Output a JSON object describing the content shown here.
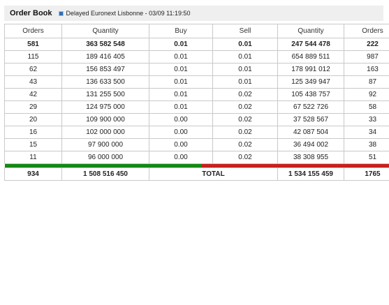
{
  "header": {
    "title": "Order Book",
    "status": "Delayed Euronext Lisbonne - 03/09 11:19:50"
  },
  "columns": [
    "Orders",
    "Quantity",
    "Buy",
    "Sell",
    "Quantity",
    "Orders"
  ],
  "rows": [
    {
      "bid_orders": "581",
      "bid_qty": "363 582 548",
      "buy": "0.01",
      "sell": "0.01",
      "ask_qty": "247 544 478",
      "ask_orders": "222"
    },
    {
      "bid_orders": "115",
      "bid_qty": "189 416 405",
      "buy": "0.01",
      "sell": "0.01",
      "ask_qty": "654 889 511",
      "ask_orders": "987"
    },
    {
      "bid_orders": "62",
      "bid_qty": "156 853 497",
      "buy": "0.01",
      "sell": "0.01",
      "ask_qty": "178 991 012",
      "ask_orders": "163"
    },
    {
      "bid_orders": "43",
      "bid_qty": "136 633 500",
      "buy": "0.01",
      "sell": "0.01",
      "ask_qty": "125 349 947",
      "ask_orders": "87"
    },
    {
      "bid_orders": "42",
      "bid_qty": "131 255 500",
      "buy": "0.01",
      "sell": "0.02",
      "ask_qty": "105 438 757",
      "ask_orders": "92"
    },
    {
      "bid_orders": "29",
      "bid_qty": "124 975 000",
      "buy": "0.01",
      "sell": "0.02",
      "ask_qty": "67 522 726",
      "ask_orders": "58"
    },
    {
      "bid_orders": "20",
      "bid_qty": "109 900 000",
      "buy": "0.00",
      "sell": "0.02",
      "ask_qty": "37 528 567",
      "ask_orders": "33"
    },
    {
      "bid_orders": "16",
      "bid_qty": "102 000 000",
      "buy": "0.00",
      "sell": "0.02",
      "ask_qty": "42 087 504",
      "ask_orders": "34"
    },
    {
      "bid_orders": "15",
      "bid_qty": "97 900 000",
      "buy": "0.00",
      "sell": "0.02",
      "ask_qty": "36 494 002",
      "ask_orders": "38"
    },
    {
      "bid_orders": "11",
      "bid_qty": "96 000 000",
      "buy": "0.00",
      "sell": "0.02",
      "ask_qty": "38 308 955",
      "ask_orders": "51"
    }
  ],
  "balance": {
    "buy_share": 0.497,
    "buy_color": "#138a13",
    "sell_color": "#c8211f"
  },
  "total": {
    "bid_orders": "934",
    "bid_qty": "1 508 516 450",
    "label": "TOTAL",
    "ask_qty": "1 534 155 459",
    "ask_orders": "1765"
  },
  "icons": {
    "status": "square-bullet-icon"
  }
}
